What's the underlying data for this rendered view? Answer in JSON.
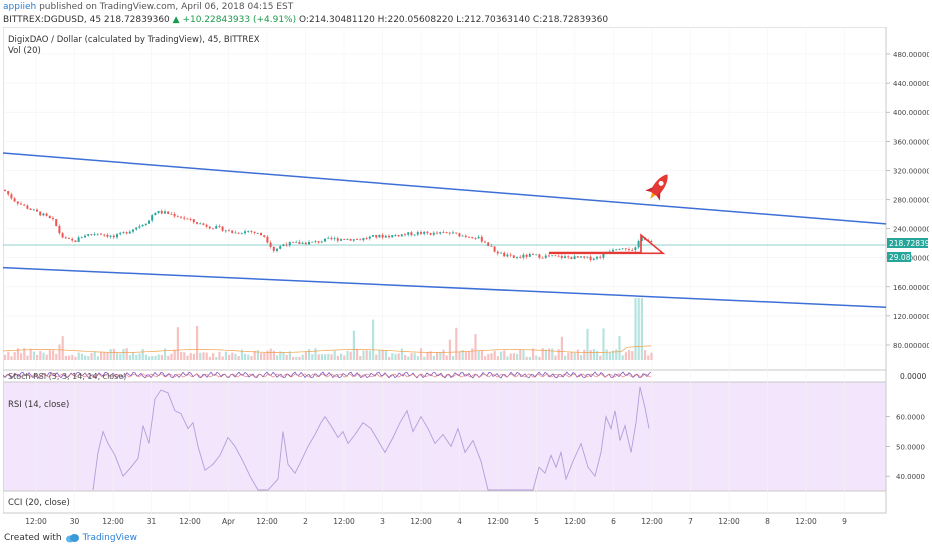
{
  "header": {
    "author": "appiieh",
    "published": "published on TradingView.com, April 06, 2018 04:15 EST",
    "symbol": "BITTREX:DGDUSD, 45",
    "last": "218.72839360",
    "change": "▲ +10.22843933 (+4.91%)",
    "ohlc": "O:214.30481120 H:220.05608220 L:212.70363140 C:218.72839360"
  },
  "legend": {
    "title": "DigixDAO / Dollar (calculated by TradingView), 45, BITTREX",
    "volume": "Vol (20)",
    "stoch": "Stoch RSI (3, 3, 14, 14, close)",
    "rsi": "RSI (14, close)",
    "cci": "CCI (20, close)"
  },
  "colors": {
    "up": "#26a69a",
    "down": "#ef5350",
    "channel": "#3d6fd6",
    "triangle": "#e53935",
    "rsi_bg": "#f3e5fb",
    "rsi_line": "#b39ddb",
    "last_price": "#26a69a"
  },
  "footer": {
    "created_with": "Created with",
    "brand": "TradingView"
  },
  "chart_data": {
    "type": "candlestick",
    "ylim": [
      60,
      500
    ],
    "price_ticks": [
      "480.00000000",
      "440.00000000",
      "400.00000000",
      "360.00000000",
      "320.00000000",
      "280.00000000",
      "240.00000000",
      "200.00000000",
      "160.00000000",
      "120.00000000",
      "80.00000000"
    ],
    "last_price": "218.72839360",
    "last_volume": "29.08",
    "x_ticks": [
      "12:00",
      "30",
      "12:00",
      "31",
      "12:00",
      "Apr",
      "12:00",
      "2",
      "12:00",
      "3",
      "12:00",
      "4",
      "12:00",
      "5",
      "12:00",
      "6",
      "12:00",
      "7",
      "12:00",
      "8",
      "12:00",
      "9"
    ],
    "close_path": [
      [
        0,
        293
      ],
      [
        10,
        279
      ],
      [
        20,
        271
      ],
      [
        30,
        264
      ],
      [
        40,
        258
      ],
      [
        50,
        250
      ],
      [
        55,
        235
      ],
      [
        60,
        226
      ],
      [
        70,
        222
      ],
      [
        80,
        231
      ],
      [
        95,
        234
      ],
      [
        110,
        228
      ],
      [
        125,
        237
      ],
      [
        135,
        244
      ],
      [
        145,
        251
      ],
      [
        150,
        263
      ],
      [
        160,
        262
      ],
      [
        175,
        257
      ],
      [
        190,
        249
      ],
      [
        205,
        243
      ],
      [
        220,
        239
      ],
      [
        230,
        234
      ],
      [
        245,
        237
      ],
      [
        260,
        230
      ],
      [
        270,
        210
      ],
      [
        280,
        219
      ],
      [
        295,
        220
      ],
      [
        310,
        221
      ],
      [
        325,
        225
      ],
      [
        340,
        226
      ],
      [
        355,
        225
      ],
      [
        370,
        229
      ],
      [
        385,
        230
      ],
      [
        400,
        232
      ],
      [
        415,
        234
      ],
      [
        430,
        233
      ],
      [
        445,
        234
      ],
      [
        460,
        230
      ],
      [
        470,
        229
      ],
      [
        480,
        223
      ],
      [
        490,
        210
      ],
      [
        500,
        203
      ],
      [
        510,
        200
      ],
      [
        525,
        203
      ],
      [
        540,
        202
      ],
      [
        555,
        201
      ],
      [
        570,
        200
      ],
      [
        585,
        199
      ],
      [
        595,
        201
      ],
      [
        600,
        205
      ],
      [
        605,
        210
      ],
      [
        610,
        213
      ],
      [
        620,
        215
      ],
      [
        625,
        212
      ],
      [
        630,
        207
      ],
      [
        637,
        231
      ],
      [
        645,
        222
      ],
      [
        648,
        218.7
      ]
    ],
    "channel_upper": [
      [
        -10,
        345
      ],
      [
        1060,
        227
      ]
    ],
    "channel_lower": [
      [
        -10,
        187
      ],
      [
        1060,
        121
      ]
    ],
    "triangle_pattern": [
      [
        546,
        207
      ],
      [
        638,
        207
      ],
      [
        638,
        231
      ],
      [
        660,
        206
      ],
      [
        546,
        206
      ]
    ],
    "stoch_rsi": {
      "value": "0.0000"
    },
    "rsi": {
      "ticks": [
        "60.0000",
        "50.0000",
        "40.0000"
      ],
      "ylim": [
        35,
        70
      ],
      "values": [
        [
          90,
          35
        ],
        [
          95,
          48
        ],
        [
          100,
          55
        ],
        [
          105,
          51
        ],
        [
          112,
          47
        ],
        [
          120,
          40
        ],
        [
          128,
          43
        ],
        [
          135,
          46
        ],
        [
          140,
          57
        ],
        [
          146,
          51
        ],
        [
          152,
          66
        ],
        [
          158,
          69
        ],
        [
          165,
          68
        ],
        [
          172,
          62
        ],
        [
          178,
          61
        ],
        [
          185,
          56
        ],
        [
          190,
          58
        ],
        [
          195,
          50
        ],
        [
          202,
          42
        ],
        [
          210,
          44
        ],
        [
          217,
          47
        ],
        [
          225,
          53
        ],
        [
          232,
          50
        ],
        [
          240,
          45
        ],
        [
          247,
          40
        ],
        [
          255,
          35
        ],
        [
          265,
          35
        ],
        [
          275,
          39
        ],
        [
          280,
          55
        ],
        [
          285,
          44
        ],
        [
          292,
          41
        ],
        [
          298,
          45
        ],
        [
          305,
          50
        ],
        [
          312,
          54
        ],
        [
          318,
          58
        ],
        [
          322,
          60
        ],
        [
          328,
          57
        ],
        [
          335,
          53
        ],
        [
          340,
          55
        ],
        [
          345,
          51
        ],
        [
          352,
          54
        ],
        [
          360,
          58
        ],
        [
          368,
          56
        ],
        [
          375,
          52
        ],
        [
          382,
          48
        ],
        [
          390,
          53
        ],
        [
          397,
          58
        ],
        [
          404,
          62
        ],
        [
          410,
          55
        ],
        [
          418,
          60
        ],
        [
          425,
          56
        ],
        [
          432,
          51
        ],
        [
          440,
          54
        ],
        [
          448,
          50
        ],
        [
          455,
          56
        ],
        [
          462,
          48
        ],
        [
          470,
          52
        ],
        [
          478,
          45
        ],
        [
          485,
          35
        ],
        [
          495,
          35
        ],
        [
          530,
          35
        ],
        [
          536,
          43
        ],
        [
          542,
          41
        ],
        [
          548,
          47
        ],
        [
          553,
          43
        ],
        [
          558,
          48
        ],
        [
          563,
          39
        ],
        [
          570,
          45
        ],
        [
          578,
          51
        ],
        [
          585,
          43
        ],
        [
          592,
          40
        ],
        [
          598,
          48
        ],
        [
          603,
          60
        ],
        [
          608,
          56
        ],
        [
          612,
          62
        ],
        [
          617,
          52
        ],
        [
          622,
          57
        ],
        [
          628,
          48
        ],
        [
          633,
          58
        ],
        [
          637,
          70
        ],
        [
          642,
          63
        ],
        [
          646,
          56
        ]
      ]
    },
    "cci": {
      "value": ""
    }
  }
}
